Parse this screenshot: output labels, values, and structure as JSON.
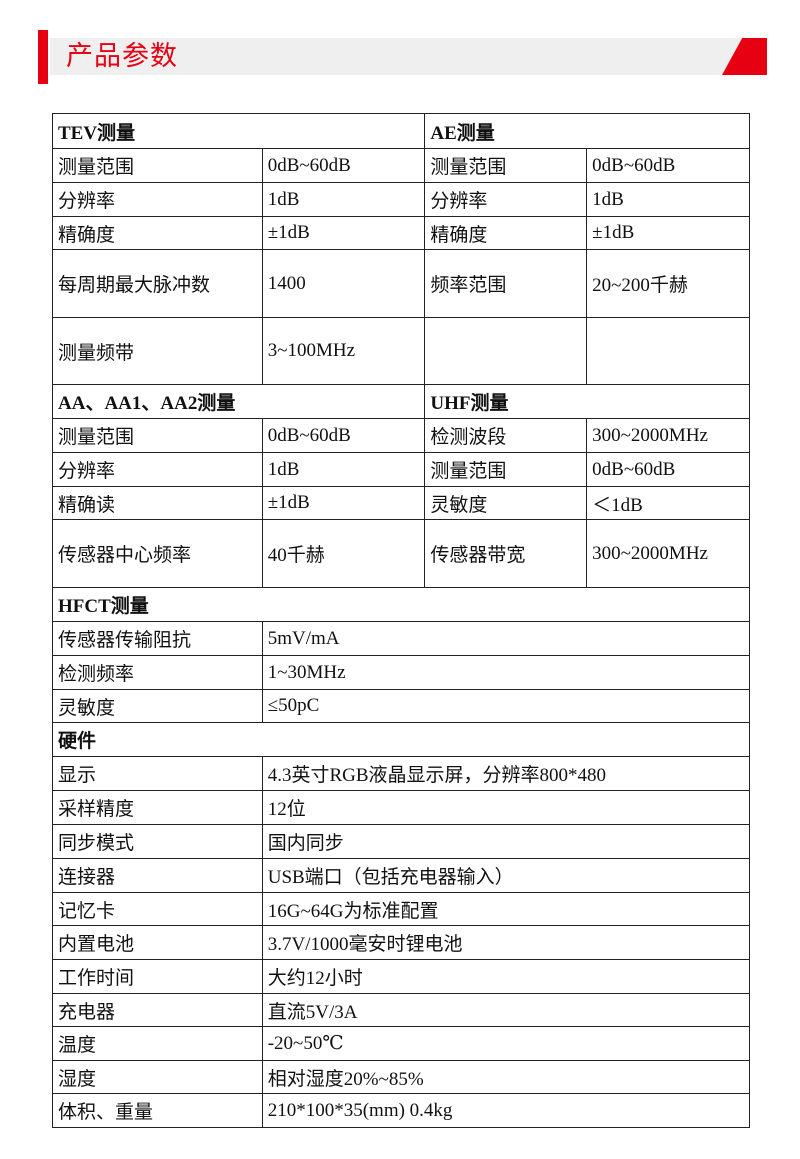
{
  "header": {
    "title": "产品参数",
    "accent": "#e60012"
  },
  "sections": [
    {
      "type": "dual",
      "titles": [
        "TEV测量",
        "AE测量"
      ],
      "rows": [
        {
          "h": 34,
          "cells": [
            "测量范围",
            "0dB~60dB",
            "测量范围",
            "0dB~60dB"
          ]
        },
        {
          "h": 34,
          "cells": [
            "分辨率",
            "1dB",
            "分辨率",
            "1dB"
          ]
        },
        {
          "h": 33,
          "cells": [
            "精确度",
            "±1dB",
            "精确度",
            "±1dB"
          ]
        },
        {
          "h": 68,
          "cells": [
            "每周期最大脉冲数",
            "1400",
            "频率范围",
            "20~200千赫"
          ]
        },
        {
          "h": 67,
          "cells": [
            "测量频带",
            "3~100MHz",
            "",
            ""
          ]
        }
      ]
    },
    {
      "type": "dual",
      "titles": [
        "AA、AA1、AA2测量",
        "UHF测量"
      ],
      "rows": [
        {
          "h": 34,
          "cells": [
            "测量范围",
            "0dB~60dB",
            "检测波段",
            "300~2000MHz"
          ]
        },
        {
          "h": 34,
          "cells": [
            "分辨率",
            "1dB",
            "测量范围",
            "0dB~60dB"
          ]
        },
        {
          "h": 33,
          "cells": [
            "精确读",
            "±1dB",
            "灵敏度",
            "＜1dB"
          ]
        },
        {
          "h": 68,
          "cells": [
            "传感器中心频率",
            "40千赫",
            "传感器带宽",
            "300~2000MHz"
          ]
        }
      ]
    },
    {
      "type": "single",
      "titles": [
        "HFCT测量"
      ],
      "rows": [
        {
          "h": 34,
          "cells": [
            "传感器传输阻抗",
            "5mV/mA"
          ]
        },
        {
          "h": 34,
          "cells": [
            "检测频率",
            "1~30MHz"
          ]
        },
        {
          "h": 33,
          "cells": [
            "灵敏度",
            "≤50pC"
          ]
        }
      ]
    },
    {
      "type": "single",
      "titles": [
        "硬件"
      ],
      "rows": [
        {
          "h": 34,
          "cells": [
            "显示",
            "4.3英寸RGB液晶显示屏，分辨率800*480"
          ]
        },
        {
          "h": 34,
          "cells": [
            "采样精度",
            "12位"
          ]
        },
        {
          "h": 34,
          "cells": [
            "同步模式",
            "国内同步"
          ]
        },
        {
          "h": 34,
          "cells": [
            "连接器",
            "USB端口（包括充电器输入）"
          ]
        },
        {
          "h": 33,
          "cells": [
            "记忆卡",
            "16G~64G为标准配置"
          ]
        },
        {
          "h": 34,
          "cells": [
            "内置电池",
            "3.7V/1000毫安时锂电池"
          ]
        },
        {
          "h": 34,
          "cells": [
            "工作时间",
            "大约12小时"
          ]
        },
        {
          "h": 33,
          "cells": [
            "充电器",
            "直流5V/3A"
          ]
        },
        {
          "h": 34,
          "cells": [
            "温度",
            "-20~50℃"
          ]
        },
        {
          "h": 33,
          "cells": [
            "湿度",
            "相对湿度20%~85%"
          ]
        },
        {
          "h": 34,
          "cells": [
            "体积、重量",
            "210*100*35(mm) 0.4kg"
          ]
        }
      ]
    }
  ]
}
